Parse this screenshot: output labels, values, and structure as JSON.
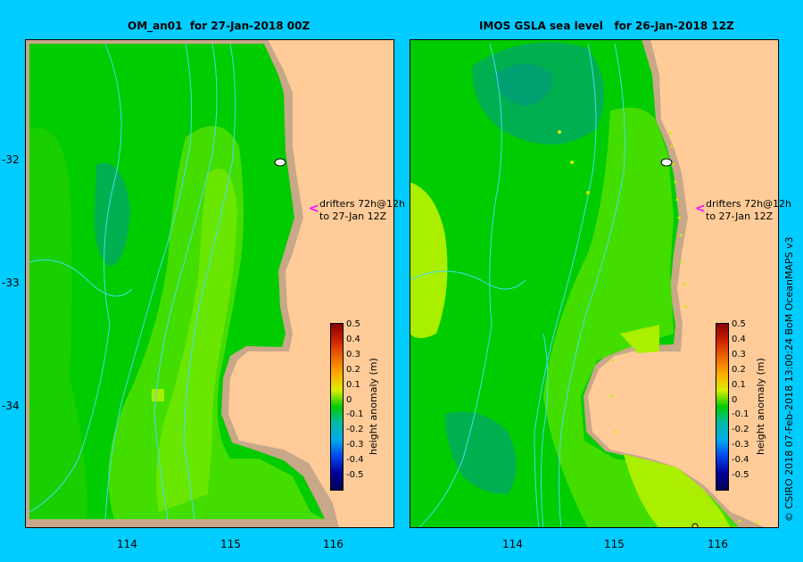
{
  "left_panel": {
    "title": "OM_an01  for 27-Jan-2018 00Z",
    "drifter_note_line1": "drifters 72h@12h",
    "drifter_note_line2": "to 27-Jan 12Z",
    "colorbar": {
      "label": "height anomaly (m)",
      "ticks": [
        "0.5",
        "0.4",
        "0.3",
        "0.2",
        "0.1",
        "0",
        "-0.1",
        "-0.2",
        "-0.3",
        "-0.4",
        "-0.5"
      ]
    }
  },
  "right_panel": {
    "title": "IMOS GSLA sea level   for 26-Jan-2018 12Z",
    "drifter_note_line1": "drifters 72h@12h",
    "drifter_note_line2": "to 27-Jan 12Z",
    "colorbar": {
      "label": "height anomaly (m)",
      "ticks": [
        "0.5",
        "0.4",
        "0.3",
        "0.2",
        "0.1",
        "0",
        "-0.1",
        "-0.2",
        "-0.3",
        "-0.4",
        "-0.5"
      ]
    }
  },
  "axes": {
    "lat_ticks": [
      "-32",
      "-33",
      "-34"
    ],
    "lon_ticks": [
      "114",
      "115",
      "116"
    ]
  },
  "credit": "© CSIRO 2018    07-Feb-2018 13:00:24 BoM OceanMAPS v3",
  "colors": {
    "background": "#00ccff",
    "land": "#ffcc99",
    "coast_strip": "#c8a888",
    "ocean_mid": "#00cc00",
    "ocean_light": "#33dd00",
    "ocean_yellowgreen": "#88ee00",
    "ocean_teal": "#00b050",
    "drifter_arrow": "#ff00ff",
    "contour": "#44ddee"
  }
}
